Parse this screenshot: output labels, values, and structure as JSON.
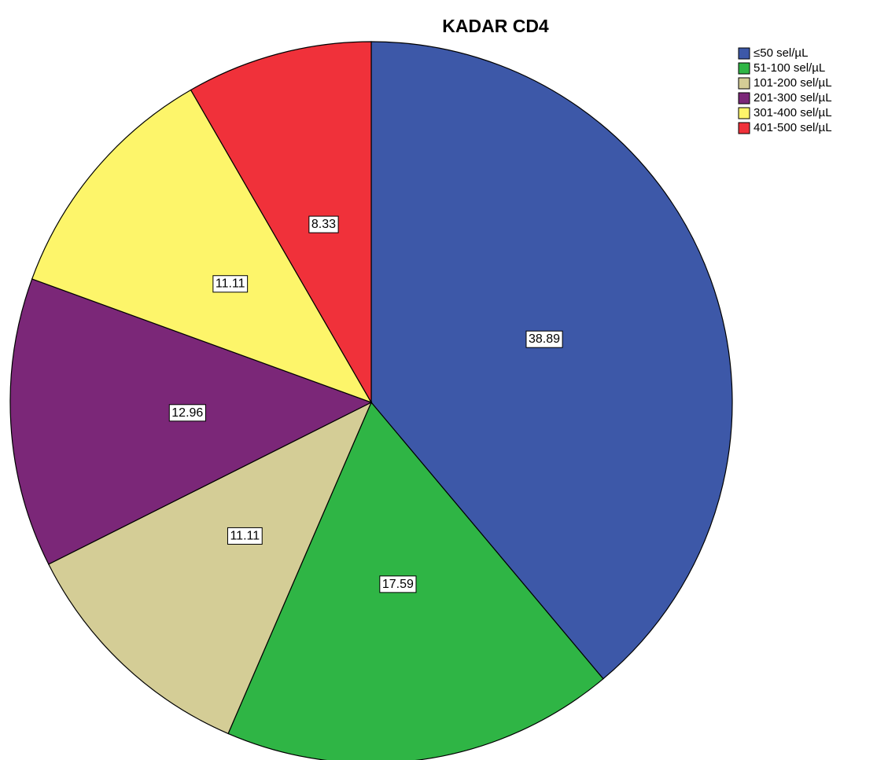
{
  "chart_data": {
    "type": "pie",
    "title": "KADAR CD4",
    "categories": [
      "≤50 sel/µL",
      "51-100 sel/µL",
      "101-200 sel/µL",
      "201-300 sel/µL",
      "301-400 sel/µL",
      "401-500 sel/µL"
    ],
    "values": [
      38.89,
      17.59,
      11.11,
      12.96,
      11.11,
      8.33
    ],
    "colors": [
      "#3d58a8",
      "#2fb545",
      "#d4cd96",
      "#7b2778",
      "#fdf56a",
      "#f0313a"
    ],
    "legend": "top-right"
  }
}
